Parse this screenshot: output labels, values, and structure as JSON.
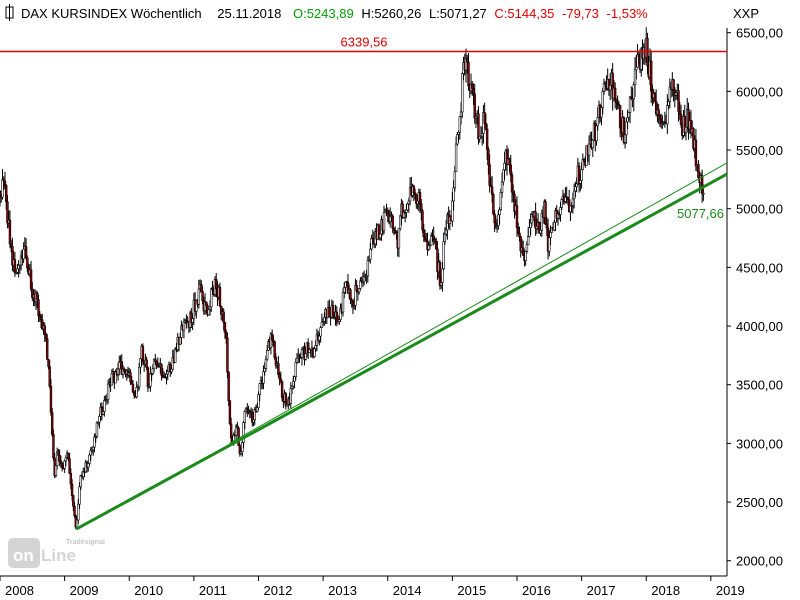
{
  "header": {
    "symbol_icon": "bar-chart-icon",
    "title": "DAX KURSINDEX Wöchentlich",
    "date": "25.11.2018",
    "open": "O:5243,89",
    "high": "H:5260,26",
    "low": "L:5071,27",
    "close": "C:5144,35",
    "change": "-79,73",
    "change_pct": "-1,53%",
    "axis_code": "XXP"
  },
  "watermark": {
    "brand": "Tradesignal",
    "name_a": "on",
    "name_b": "Line"
  },
  "colors": {
    "open": "#00a000",
    "close": "#e00000",
    "resistance": "#e00000",
    "trend": "#1a8a1a",
    "candle_up": "#ffffff",
    "candle_down": "#8b0000",
    "wick": "#000000"
  },
  "chart_data": {
    "type": "candlestick",
    "title": "DAX KURSINDEX Wöchentlich",
    "frequency": "weekly",
    "y_axis_position": "right",
    "ylim": [
      1870,
      6540
    ],
    "yticks": [
      2000,
      2500,
      3000,
      3500,
      4000,
      4500,
      5000,
      5500,
      6000,
      6500
    ],
    "ytick_labels": [
      "2000,00",
      "2500,00",
      "3000,00",
      "3500,00",
      "4000,00",
      "4500,00",
      "5000,00",
      "5500,00",
      "6000,00",
      "6500,00"
    ],
    "xlim": [
      2008.0,
      2019.25
    ],
    "xticks": [
      2008,
      2009,
      2010,
      2011,
      2012,
      2013,
      2014,
      2015,
      2016,
      2017,
      2018,
      2019
    ],
    "xtick_labels": [
      "2008",
      "2009",
      "2010",
      "2011",
      "2012",
      "2013",
      "2014",
      "2015",
      "2016",
      "2017",
      "2018",
      "2019"
    ],
    "anchors": [
      [
        2008.0,
        5150
      ],
      [
        2008.06,
        5260
      ],
      [
        2008.12,
        4900
      ],
      [
        2008.18,
        4600
      ],
      [
        2008.28,
        4450
      ],
      [
        2008.38,
        4650
      ],
      [
        2008.5,
        4300
      ],
      [
        2008.6,
        4150
      ],
      [
        2008.72,
        3850
      ],
      [
        2008.78,
        3350
      ],
      [
        2008.84,
        2700
      ],
      [
        2008.9,
        2950
      ],
      [
        2008.96,
        2750
      ],
      [
        2009.05,
        2950
      ],
      [
        2009.12,
        2500
      ],
      [
        2009.18,
        2300
      ],
      [
        2009.25,
        2700
      ],
      [
        2009.32,
        2800
      ],
      [
        2009.45,
        3000
      ],
      [
        2009.55,
        3250
      ],
      [
        2009.7,
        3500
      ],
      [
        2009.85,
        3650
      ],
      [
        2010.0,
        3600
      ],
      [
        2010.1,
        3350
      ],
      [
        2010.2,
        3800
      ],
      [
        2010.3,
        3500
      ],
      [
        2010.4,
        3700
      ],
      [
        2010.55,
        3550
      ],
      [
        2010.7,
        3750
      ],
      [
        2010.8,
        3950
      ],
      [
        2010.9,
        4000
      ],
      [
        2011.0,
        4150
      ],
      [
        2011.1,
        4300
      ],
      [
        2011.2,
        4100
      ],
      [
        2011.3,
        4350
      ],
      [
        2011.4,
        4250
      ],
      [
        2011.5,
        3900
      ],
      [
        2011.55,
        3200
      ],
      [
        2011.6,
        2950
      ],
      [
        2011.65,
        3200
      ],
      [
        2011.72,
        2850
      ],
      [
        2011.8,
        3300
      ],
      [
        2011.9,
        3200
      ],
      [
        2012.0,
        3400
      ],
      [
        2012.1,
        3700
      ],
      [
        2012.2,
        3900
      ],
      [
        2012.28,
        3650
      ],
      [
        2012.38,
        3400
      ],
      [
        2012.45,
        3300
      ],
      [
        2012.55,
        3600
      ],
      [
        2012.65,
        3750
      ],
      [
        2012.75,
        3800
      ],
      [
        2012.85,
        3750
      ],
      [
        2012.95,
        4000
      ],
      [
        2013.05,
        4100
      ],
      [
        2013.15,
        4150
      ],
      [
        2013.25,
        4050
      ],
      [
        2013.35,
        4350
      ],
      [
        2013.45,
        4200
      ],
      [
        2013.55,
        4350
      ],
      [
        2013.65,
        4400
      ],
      [
        2013.75,
        4700
      ],
      [
        2013.85,
        4800
      ],
      [
        2013.95,
        4900
      ],
      [
        2014.05,
        4950
      ],
      [
        2014.15,
        4700
      ],
      [
        2014.22,
        5000
      ],
      [
        2014.3,
        5050
      ],
      [
        2014.4,
        5150
      ],
      [
        2014.5,
        5050
      ],
      [
        2014.55,
        4750
      ],
      [
        2014.62,
        4600
      ],
      [
        2014.7,
        4800
      ],
      [
        2014.78,
        4500
      ],
      [
        2014.82,
        4350
      ],
      [
        2014.9,
        4900
      ],
      [
        2015.0,
        5000
      ],
      [
        2015.05,
        5500
      ],
      [
        2015.12,
        5800
      ],
      [
        2015.18,
        6250
      ],
      [
        2015.22,
        6300
      ],
      [
        2015.28,
        6000
      ],
      [
        2015.35,
        5850
      ],
      [
        2015.42,
        5600
      ],
      [
        2015.5,
        5800
      ],
      [
        2015.55,
        5400
      ],
      [
        2015.6,
        5100
      ],
      [
        2015.68,
        4850
      ],
      [
        2015.75,
        5100
      ],
      [
        2015.82,
        5450
      ],
      [
        2015.9,
        5250
      ],
      [
        2015.97,
        5000
      ],
      [
        2016.03,
        4700
      ],
      [
        2016.1,
        4550
      ],
      [
        2016.17,
        4750
      ],
      [
        2016.25,
        4950
      ],
      [
        2016.33,
        4800
      ],
      [
        2016.42,
        5000
      ],
      [
        2016.48,
        4650
      ],
      [
        2016.55,
        4800
      ],
      [
        2016.62,
        5000
      ],
      [
        2016.72,
        5100
      ],
      [
        2016.82,
        5050
      ],
      [
        2016.92,
        5300
      ],
      [
        2017.0,
        5300
      ],
      [
        2017.1,
        5550
      ],
      [
        2017.2,
        5650
      ],
      [
        2017.3,
        5850
      ],
      [
        2017.38,
        6050
      ],
      [
        2017.45,
        6100
      ],
      [
        2017.52,
        5900
      ],
      [
        2017.6,
        5750
      ],
      [
        2017.66,
        5650
      ],
      [
        2017.75,
        5950
      ],
      [
        2017.82,
        6100
      ],
      [
        2017.88,
        6300
      ],
      [
        2017.94,
        6250
      ],
      [
        2018.0,
        6350
      ],
      [
        2018.06,
        6150
      ],
      [
        2018.12,
        5950
      ],
      [
        2018.18,
        5800
      ],
      [
        2018.25,
        5650
      ],
      [
        2018.3,
        5800
      ],
      [
        2018.4,
        6050
      ],
      [
        2018.48,
        5950
      ],
      [
        2018.55,
        5650
      ],
      [
        2018.62,
        5800
      ],
      [
        2018.7,
        5700
      ],
      [
        2018.77,
        5450
      ],
      [
        2018.84,
        5250
      ],
      [
        2018.9,
        5144
      ]
    ],
    "resistance": {
      "value": 6339.56,
      "label": "6339,56",
      "x_from": 2008.0,
      "x_to": 2019.25
    },
    "trendlines": [
      {
        "x0": 2009.18,
        "y0": 2270,
        "x1": 2019.25,
        "y1": 5295,
        "label": "5077,66",
        "width": "thick"
      },
      {
        "x0": 2011.55,
        "y0": 3000,
        "x1": 2019.25,
        "y1": 5390,
        "width": "thin"
      }
    ]
  }
}
